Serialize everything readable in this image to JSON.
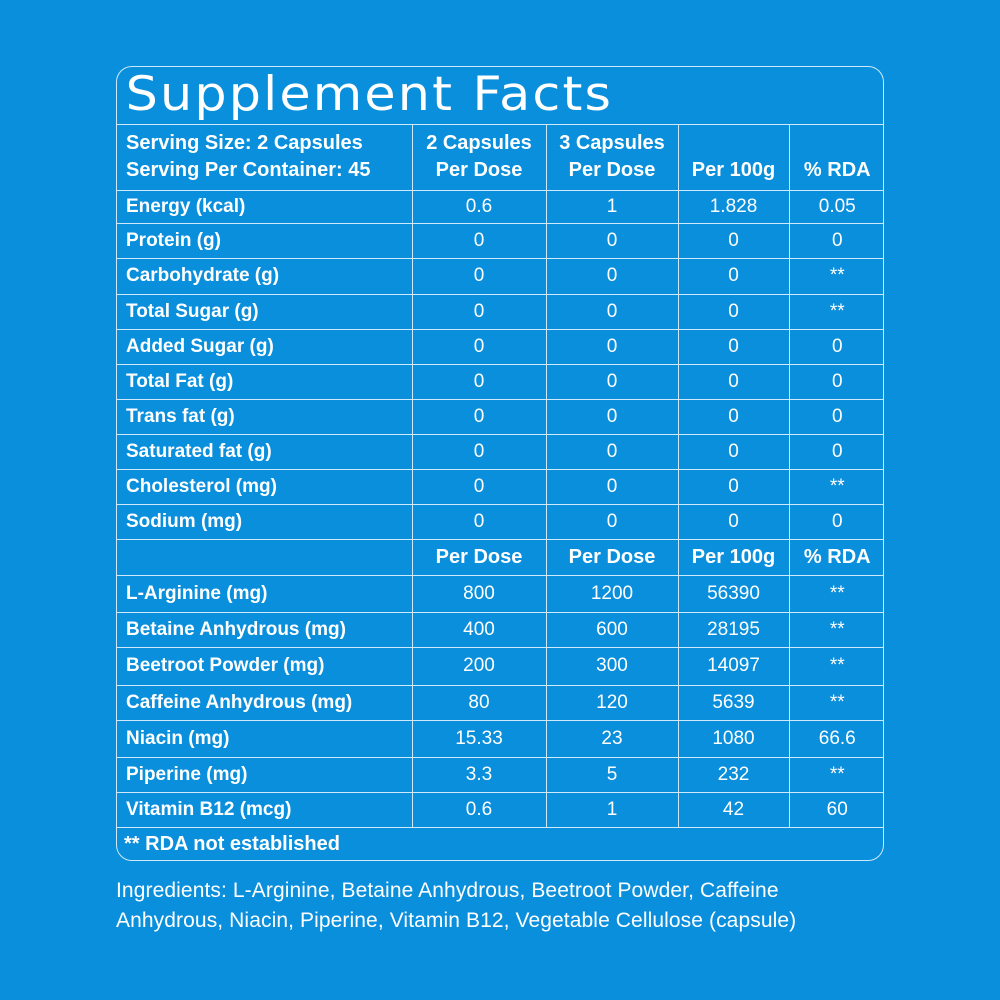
{
  "title": "Supplement Facts",
  "header": {
    "serving_size": "Serving Size: 2 Capsules",
    "servings_per_container": "Serving Per Container: 45",
    "col1_line1": "2 Capsules",
    "col1_line2": "Per Dose",
    "col2_line1": "3 Capsules",
    "col2_line2": "Per Dose",
    "col3": "Per 100g",
    "col4": "% RDA"
  },
  "nutrition_rows": [
    {
      "name": "Energy (kcal)",
      "dose2": "0.6",
      "dose3": "1",
      "per100g": "1.828",
      "rda": "0.05"
    },
    {
      "name": "Protein (g)",
      "dose2": "0",
      "dose3": "0",
      "per100g": "0",
      "rda": "0"
    },
    {
      "name": "Carbohydrate (g)",
      "dose2": "0",
      "dose3": "0",
      "per100g": "0",
      "rda": "**"
    },
    {
      "name": "Total Sugar (g)",
      "dose2": "0",
      "dose3": "0",
      "per100g": "0",
      "rda": "**"
    },
    {
      "name": "Added Sugar (g)",
      "dose2": "0",
      "dose3": "0",
      "per100g": "0",
      "rda": "0"
    },
    {
      "name": "Total Fat (g)",
      "dose2": "0",
      "dose3": "0",
      "per100g": "0",
      "rda": "0"
    },
    {
      "name": "Trans fat (g)",
      "dose2": "0",
      "dose3": "0",
      "per100g": "0",
      "rda": "0"
    },
    {
      "name": "Saturated fat (g)",
      "dose2": "0",
      "dose3": "0",
      "per100g": "0",
      "rda": "0"
    },
    {
      "name": "Cholesterol (mg)",
      "dose2": "0",
      "dose3": "0",
      "per100g": "0",
      "rda": "**"
    },
    {
      "name": "Sodium (mg)",
      "dose2": "0",
      "dose3": "0",
      "per100g": "0",
      "rda": "0"
    }
  ],
  "subheader": {
    "col1": "Per Dose",
    "col2": "Per Dose",
    "col3": "Per 100g",
    "col4": "% RDA"
  },
  "active_rows": [
    {
      "name": "L-Arginine (mg)",
      "dose2": "800",
      "dose3": "1200",
      "per100g": "56390",
      "rda": "**"
    },
    {
      "name": "Betaine Anhydrous (mg)",
      "dose2": "400",
      "dose3": "600",
      "per100g": "28195",
      "rda": "**"
    },
    {
      "name": "Beetroot Powder (mg)",
      "dose2": "200",
      "dose3": "300",
      "per100g": "14097",
      "rda": "**"
    },
    {
      "name": "Caffeine Anhydrous (mg)",
      "dose2": "80",
      "dose3": "120",
      "per100g": "5639",
      "rda": "**"
    },
    {
      "name": "Niacin (mg)",
      "dose2": "15.33",
      "dose3": "23",
      "per100g": "1080",
      "rda": "66.6"
    },
    {
      "name": "Piperine (mg)",
      "dose2": "3.3",
      "dose3": "5",
      "per100g": "232",
      "rda": "**"
    },
    {
      "name": "Vitamin B12 (mcg)",
      "dose2": "0.6",
      "dose3": "1",
      "per100g": "42",
      "rda": "60"
    }
  ],
  "footnote": "** RDA not established",
  "ingredients": {
    "line1": "Ingredients: L-Arginine, Betaine Anhydrous, Beetroot Powder, Caffeine",
    "line2": "Anhydrous, Niacin, Piperine, Vitamin B12, Vegetable Cellulose (capsule)"
  },
  "colors": {
    "background": "#0a8fdc",
    "text": "#ffffff",
    "border": "#cfe9fb"
  }
}
